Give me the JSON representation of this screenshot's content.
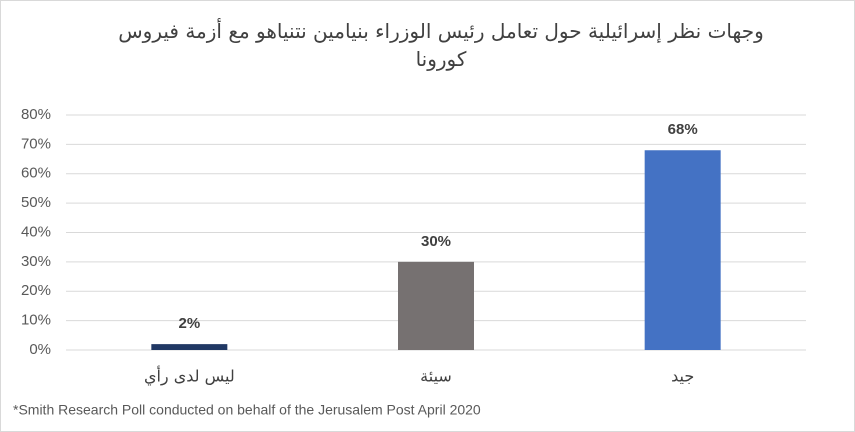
{
  "chart_data": {
    "type": "bar",
    "title": "وجهات نظر إسرائيلية حول تعامل رئيس الوزراء بنيامين نتنياهو مع أزمة فيروس كورونا",
    "categories": [
      "ليس لدى رأي",
      "سيئة",
      "جيد"
    ],
    "values": [
      2,
      30,
      68
    ],
    "value_labels": [
      "2%",
      "30%",
      "68%"
    ],
    "colors": [
      "#203864",
      "#767171",
      "#4472c4"
    ],
    "ylim": [
      0,
      80
    ],
    "yticks": [
      {
        "value": 0,
        "label": "0%"
      },
      {
        "value": 10,
        "label": "10%"
      },
      {
        "value": 20,
        "label": "20%"
      },
      {
        "value": 30,
        "label": "30%"
      },
      {
        "value": 40,
        "label": "40%"
      },
      {
        "value": 50,
        "label": "50%"
      },
      {
        "value": 60,
        "label": "60%"
      },
      {
        "value": 70,
        "label": "70%"
      },
      {
        "value": 80,
        "label": "80%"
      }
    ],
    "grid": true,
    "footnote": "*Smith Research Poll conducted on behalf of the Jerusalem Post April 2020"
  }
}
